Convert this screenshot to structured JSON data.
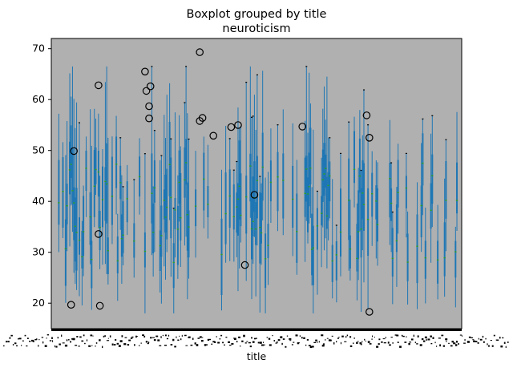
{
  "chart_data": {
    "type": "box",
    "title": "Boxplot grouped by title",
    "subtitle": "neuroticism",
    "xlabel": "title",
    "ylabel": "",
    "ylim": [
      15.0,
      72.0
    ],
    "yticks": [
      20,
      30,
      40,
      50,
      60,
      70
    ],
    "grid": false,
    "legend": "none",
    "n_categories": 300,
    "box_color": "#1f77b4",
    "median_color": "#2ca02c",
    "cap_color": "#000000",
    "flier_color": "#000000",
    "plot_background": "#b0b0b0",
    "outliers": [
      {
        "x": 14,
        "y": 19.7
      },
      {
        "x": 16,
        "y": 49.9
      },
      {
        "x": 34,
        "y": 62.8
      },
      {
        "x": 34,
        "y": 33.6
      },
      {
        "x": 35,
        "y": 19.5
      },
      {
        "x": 68,
        "y": 65.5
      },
      {
        "x": 69,
        "y": 61.7
      },
      {
        "x": 71,
        "y": 58.7
      },
      {
        "x": 71,
        "y": 56.3
      },
      {
        "x": 72,
        "y": 62.6
      },
      {
        "x": 108,
        "y": 69.3
      },
      {
        "x": 108,
        "y": 55.8
      },
      {
        "x": 110,
        "y": 56.4
      },
      {
        "x": 118,
        "y": 52.9
      },
      {
        "x": 131,
        "y": 54.6
      },
      {
        "x": 136,
        "y": 55.0
      },
      {
        "x": 141,
        "y": 27.5
      },
      {
        "x": 148,
        "y": 41.3
      },
      {
        "x": 183,
        "y": 54.7
      },
      {
        "x": 230,
        "y": 56.9
      },
      {
        "x": 232,
        "y": 52.5
      },
      {
        "x": 232,
        "y": 18.3
      }
    ]
  }
}
